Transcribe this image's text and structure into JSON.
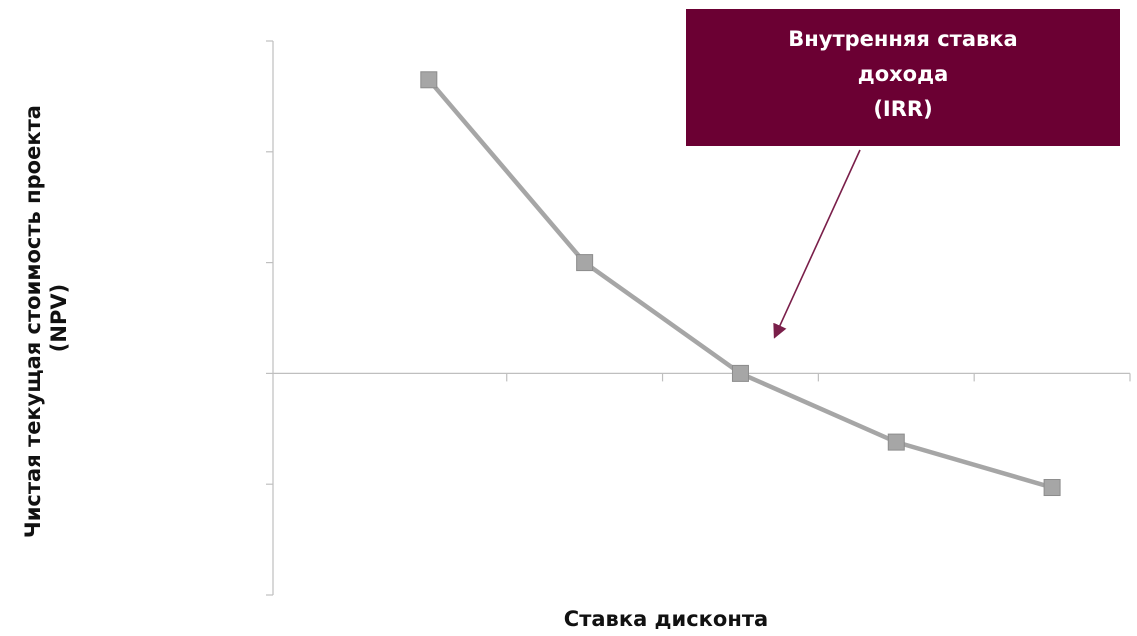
{
  "chart_data": {
    "type": "line",
    "title": "",
    "xlabel": "Ставка дисконта",
    "ylabel": [
      "Чистая текущая стоимость проекта",
      "(NPV)"
    ],
    "x": [
      1,
      2,
      3,
      4,
      5
    ],
    "series": [
      {
        "values": [
          2.65,
          1.0,
          0.0,
          -0.62,
          -1.03
        ]
      }
    ],
    "xlim": [
      0,
      5.5
    ],
    "ylim": [
      -2.0,
      3.0
    ],
    "y_ticks": [
      -2,
      -1,
      0,
      1,
      2,
      3
    ],
    "x_ticks": [
      1,
      2,
      3,
      4,
      5
    ],
    "tick_labels_shown": false,
    "grid": false,
    "legend": "none",
    "annotation": {
      "lines": [
        "Внутренняя ставка",
        "дохода",
        "(IRR)"
      ],
      "points_to_x": 3,
      "points_to_y": 0
    },
    "colors": {
      "line": "#a6a6a6",
      "marker": "#a6a6a6",
      "axis": "#bfbfbf",
      "callout_bg": "#6b0033",
      "callout_text": "#ffffff",
      "arrow": "#7a1f4a"
    }
  }
}
